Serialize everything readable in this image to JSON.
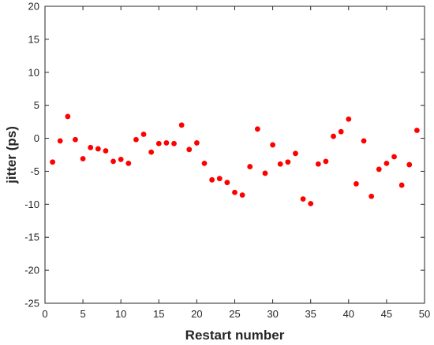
{
  "chart_data": {
    "type": "scatter",
    "title": "",
    "xlabel": "Restart number",
    "ylabel": "jitter (ps)",
    "xlim": [
      0,
      50
    ],
    "ylim": [
      -25,
      20
    ],
    "xticks": [
      0,
      5,
      10,
      15,
      20,
      25,
      30,
      35,
      40,
      45,
      50
    ],
    "yticks": [
      -25,
      -20,
      -15,
      -10,
      -5,
      0,
      5,
      10,
      15,
      20
    ],
    "grid": false,
    "legend": "none",
    "box": true,
    "marker_color": "#ff0000",
    "axis_color": "#262626",
    "series": [
      {
        "x": [
          1,
          2,
          3,
          4,
          5,
          6,
          7,
          8,
          9,
          10,
          11,
          12,
          13,
          14,
          15,
          16,
          17,
          18,
          19,
          20,
          21,
          22,
          23,
          24,
          25,
          26,
          27,
          28,
          29,
          30,
          31,
          32,
          33,
          34,
          35,
          36,
          37,
          38,
          39,
          40,
          41,
          42,
          43,
          44,
          45,
          46,
          47,
          48,
          49,
          50
        ],
        "y": [
          -3.6,
          -0.4,
          3.3,
          -0.2,
          -3.1,
          -1.4,
          -1.6,
          -1.9,
          -3.5,
          -3.2,
          -3.8,
          -0.2,
          0.6,
          -2.1,
          -0.8,
          -0.7,
          -0.8,
          2.0,
          -1.7,
          -0.7,
          -3.8,
          -6.3,
          -6.1,
          -6.7,
          -8.2,
          -8.6,
          -4.3,
          1.4,
          -5.3,
          -1.0,
          -3.9,
          -3.6,
          -2.3,
          -9.2,
          -9.9,
          -3.9,
          -3.5,
          0.3,
          1.0,
          2.9,
          -6.9,
          -0.4,
          -8.8,
          -4.7,
          -3.8,
          -2.8,
          -7.1,
          -4.0,
          1.2,
          null
        ]
      }
    ]
  }
}
